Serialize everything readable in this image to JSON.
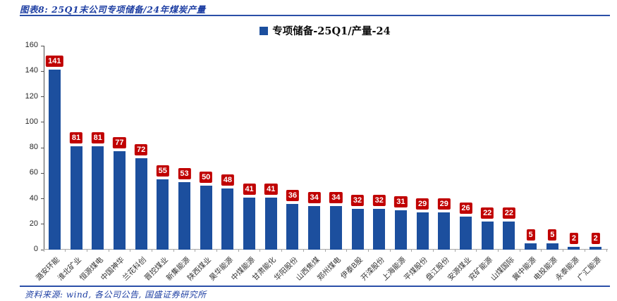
{
  "page": {
    "header_title": "图表8: 25Q1末公司专项储备/24年煤炭产量",
    "source_text": "资料来源: wind, 各公司公告, 国盛证券研究所"
  },
  "chart_data": {
    "type": "bar",
    "title": "25Q1末公司专项储备/24年煤炭产量",
    "legend": [
      "专项储备-25Q1/产量-24"
    ],
    "legend_position": "top-center",
    "categories": [
      "潞安环能",
      "淮北矿业",
      "恒源煤电",
      "中国神华",
      "兰花科创",
      "晋控煤业",
      "新集能源",
      "陕西煤业",
      "昊华能源",
      "中煤能源",
      "甘肃能化",
      "华阳股份",
      "山西焦煤",
      "郑州煤电",
      "伊泰B股",
      "开滦股份",
      "上海能源",
      "平煤股份",
      "盘江股份",
      "安源煤业",
      "兖矿能源",
      "山煤国际",
      "冀中能源",
      "电投能源",
      "永泰能源",
      "广汇能源"
    ],
    "values": [
      141,
      81,
      81,
      77,
      72,
      55,
      53,
      50,
      48,
      41,
      41,
      36,
      34,
      34,
      32,
      32,
      31,
      29,
      29,
      26,
      22,
      22,
      5,
      5,
      2,
      2
    ],
    "xlabel": "",
    "ylabel": "",
    "ylim": [
      0,
      160
    ],
    "ytick_step": 20,
    "grid": false,
    "data_labels": true
  },
  "colors": {
    "bar_blue": "#1c4f9e",
    "label_red": "#c00000",
    "label_text": "#ffffff",
    "heading_blue": "#1e3fa3",
    "rule_blue": "#2b4fa8",
    "axis_gray": "#a6a6a6"
  }
}
